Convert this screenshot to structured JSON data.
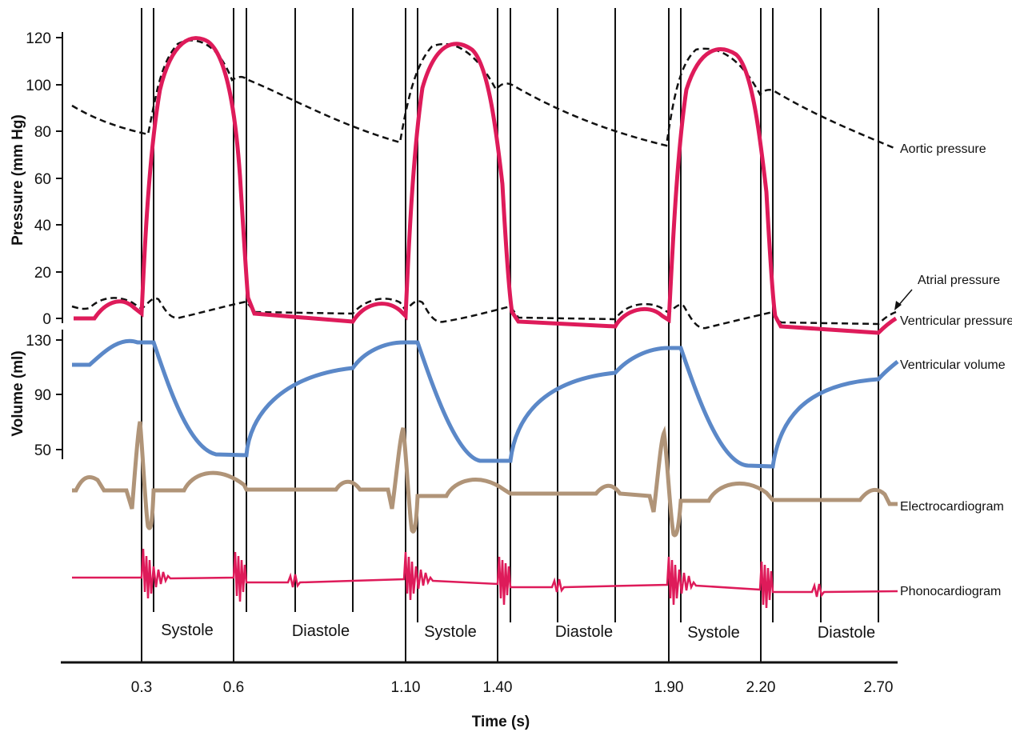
{
  "chart_data": {
    "type": "line",
    "xlabel": "Time (s)",
    "x_ticks": [
      "0.3",
      "0.6",
      "1.10",
      "1.40",
      "1.90",
      "2.20",
      "2.70"
    ],
    "pressure_axis": {
      "label": "Pressure (mm Hg)",
      "ticks": [
        "120",
        "100",
        "80",
        "60",
        "40",
        "20",
        "0"
      ],
      "ylim": [
        0,
        120
      ]
    },
    "volume_axis": {
      "label": "Volume (ml)",
      "ticks": [
        "130",
        "90",
        "50"
      ],
      "ylim": [
        50,
        130
      ]
    },
    "traces": {
      "aortic": "Aortic pressure",
      "atrial": "Atrial pressure",
      "ventricular_pressure": "Ventricular pressure",
      "ventricular_volume": "Ventricular volume",
      "ecg": "Electrocardiogram",
      "pcg": "Phonocardiogram"
    },
    "phases": [
      "Systole",
      "Diastole",
      "Systole",
      "Diastole",
      "Systole",
      "Diastole"
    ],
    "colors": {
      "ventricular_pressure": "#de1b5a",
      "ventricular_volume": "#5b88c8",
      "ecg": "#b09478",
      "phonocardiogram": "#de1b5a",
      "aortic": "#111111",
      "atrial": "#111111"
    }
  }
}
